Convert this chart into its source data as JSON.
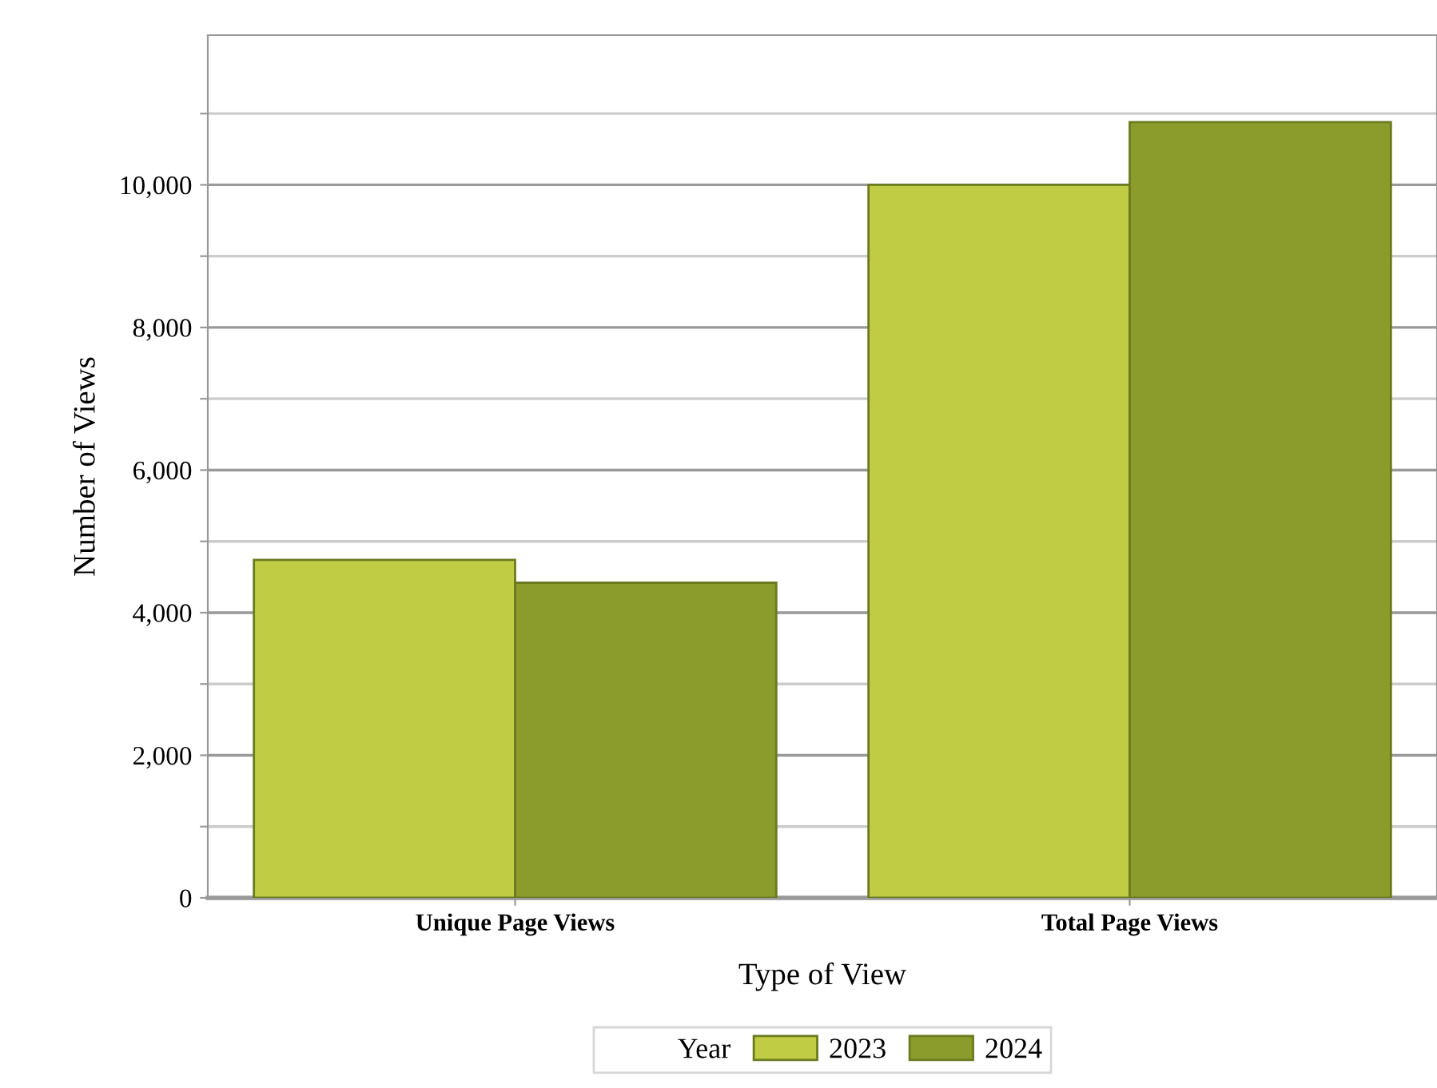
{
  "chart_data": {
    "type": "bar",
    "xlabel": "Type of View",
    "ylabel": "Number of Views",
    "legend_title": "Year",
    "categories": [
      "Unique Page Views",
      "Total Page Views"
    ],
    "series": [
      {
        "name": "2023",
        "color": "#bfcc44",
        "values": [
          4740,
          10000
        ]
      },
      {
        "name": "2024",
        "color": "#8b9c2c",
        "values": [
          4420,
          10880
        ]
      }
    ],
    "ylim": [
      0,
      12100
    ],
    "yticks": [
      {
        "value": 0,
        "label": "0"
      },
      {
        "value": 1000,
        "label": null
      },
      {
        "value": 2000,
        "label": "2,000"
      },
      {
        "value": 3000,
        "label": null
      },
      {
        "value": 4000,
        "label": "4,000"
      },
      {
        "value": 5000,
        "label": null
      },
      {
        "value": 6000,
        "label": "6,000"
      },
      {
        "value": 7000,
        "label": null
      },
      {
        "value": 8000,
        "label": "8,000"
      },
      {
        "value": 9000,
        "label": null
      },
      {
        "value": 10000,
        "label": "10,000"
      },
      {
        "value": 11000,
        "label": null
      }
    ],
    "grid": "y",
    "legend": "bottom"
  }
}
